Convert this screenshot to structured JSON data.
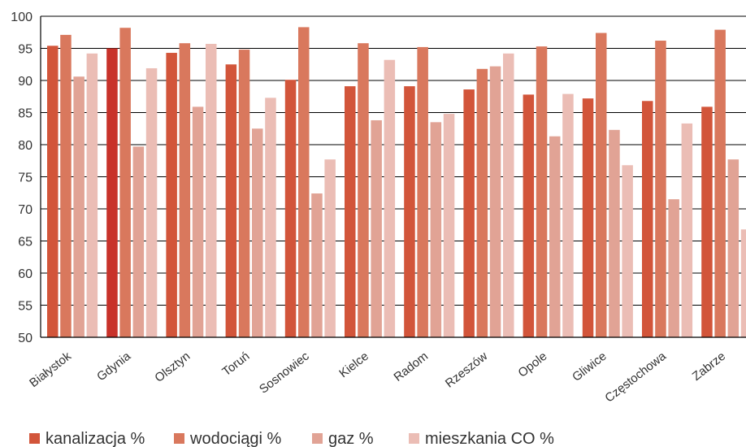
{
  "chart_data": {
    "type": "bar",
    "title": "",
    "xlabel": "",
    "ylabel": "",
    "ylim": [
      50,
      100
    ],
    "y_ticks": [
      50,
      55,
      60,
      65,
      70,
      75,
      80,
      85,
      90,
      95,
      100
    ],
    "grid": "horizontal",
    "legend_position": "bottom-left",
    "categories": [
      "Białystok",
      "Gdynia",
      "Olsztyn",
      "Toruń",
      "Sosnowiec",
      "Kielce",
      "Radom",
      "Rzeszów",
      "Opole",
      "Gliwice",
      "Częstochowa",
      "Zabrze"
    ],
    "series": [
      {
        "name": "kanalizacja %",
        "color": "#d2553a",
        "values": [
          95.4,
          95.0,
          94.3,
          92.5,
          90.1,
          89.1,
          89.1,
          88.6,
          87.8,
          87.2,
          86.8,
          85.9
        ]
      },
      {
        "name": "wodociągi %",
        "color": "#d9785d",
        "values": [
          97.1,
          98.2,
          95.8,
          94.8,
          98.3,
          95.8,
          95.2,
          91.8,
          95.3,
          97.4,
          96.2,
          97.9
        ]
      },
      {
        "name": "gaz %",
        "color": "#e1a395",
        "values": [
          90.6,
          79.7,
          85.9,
          82.5,
          72.4,
          83.8,
          83.5,
          92.2,
          81.3,
          82.3,
          71.5,
          77.7
        ]
      },
      {
        "name": "mieszkania CO %",
        "color": "#ebbdb5",
        "values": [
          94.2,
          91.9,
          95.7,
          87.3,
          77.7,
          93.2,
          84.8,
          94.2,
          87.9,
          76.8,
          83.3,
          66.8
        ]
      }
    ],
    "highlight": {
      "category_index": 1,
      "series_index": 0,
      "color": "#c8322a"
    },
    "colors": {
      "axis": "#000000",
      "gridline": "#000000",
      "tick_text": "#333333"
    }
  }
}
